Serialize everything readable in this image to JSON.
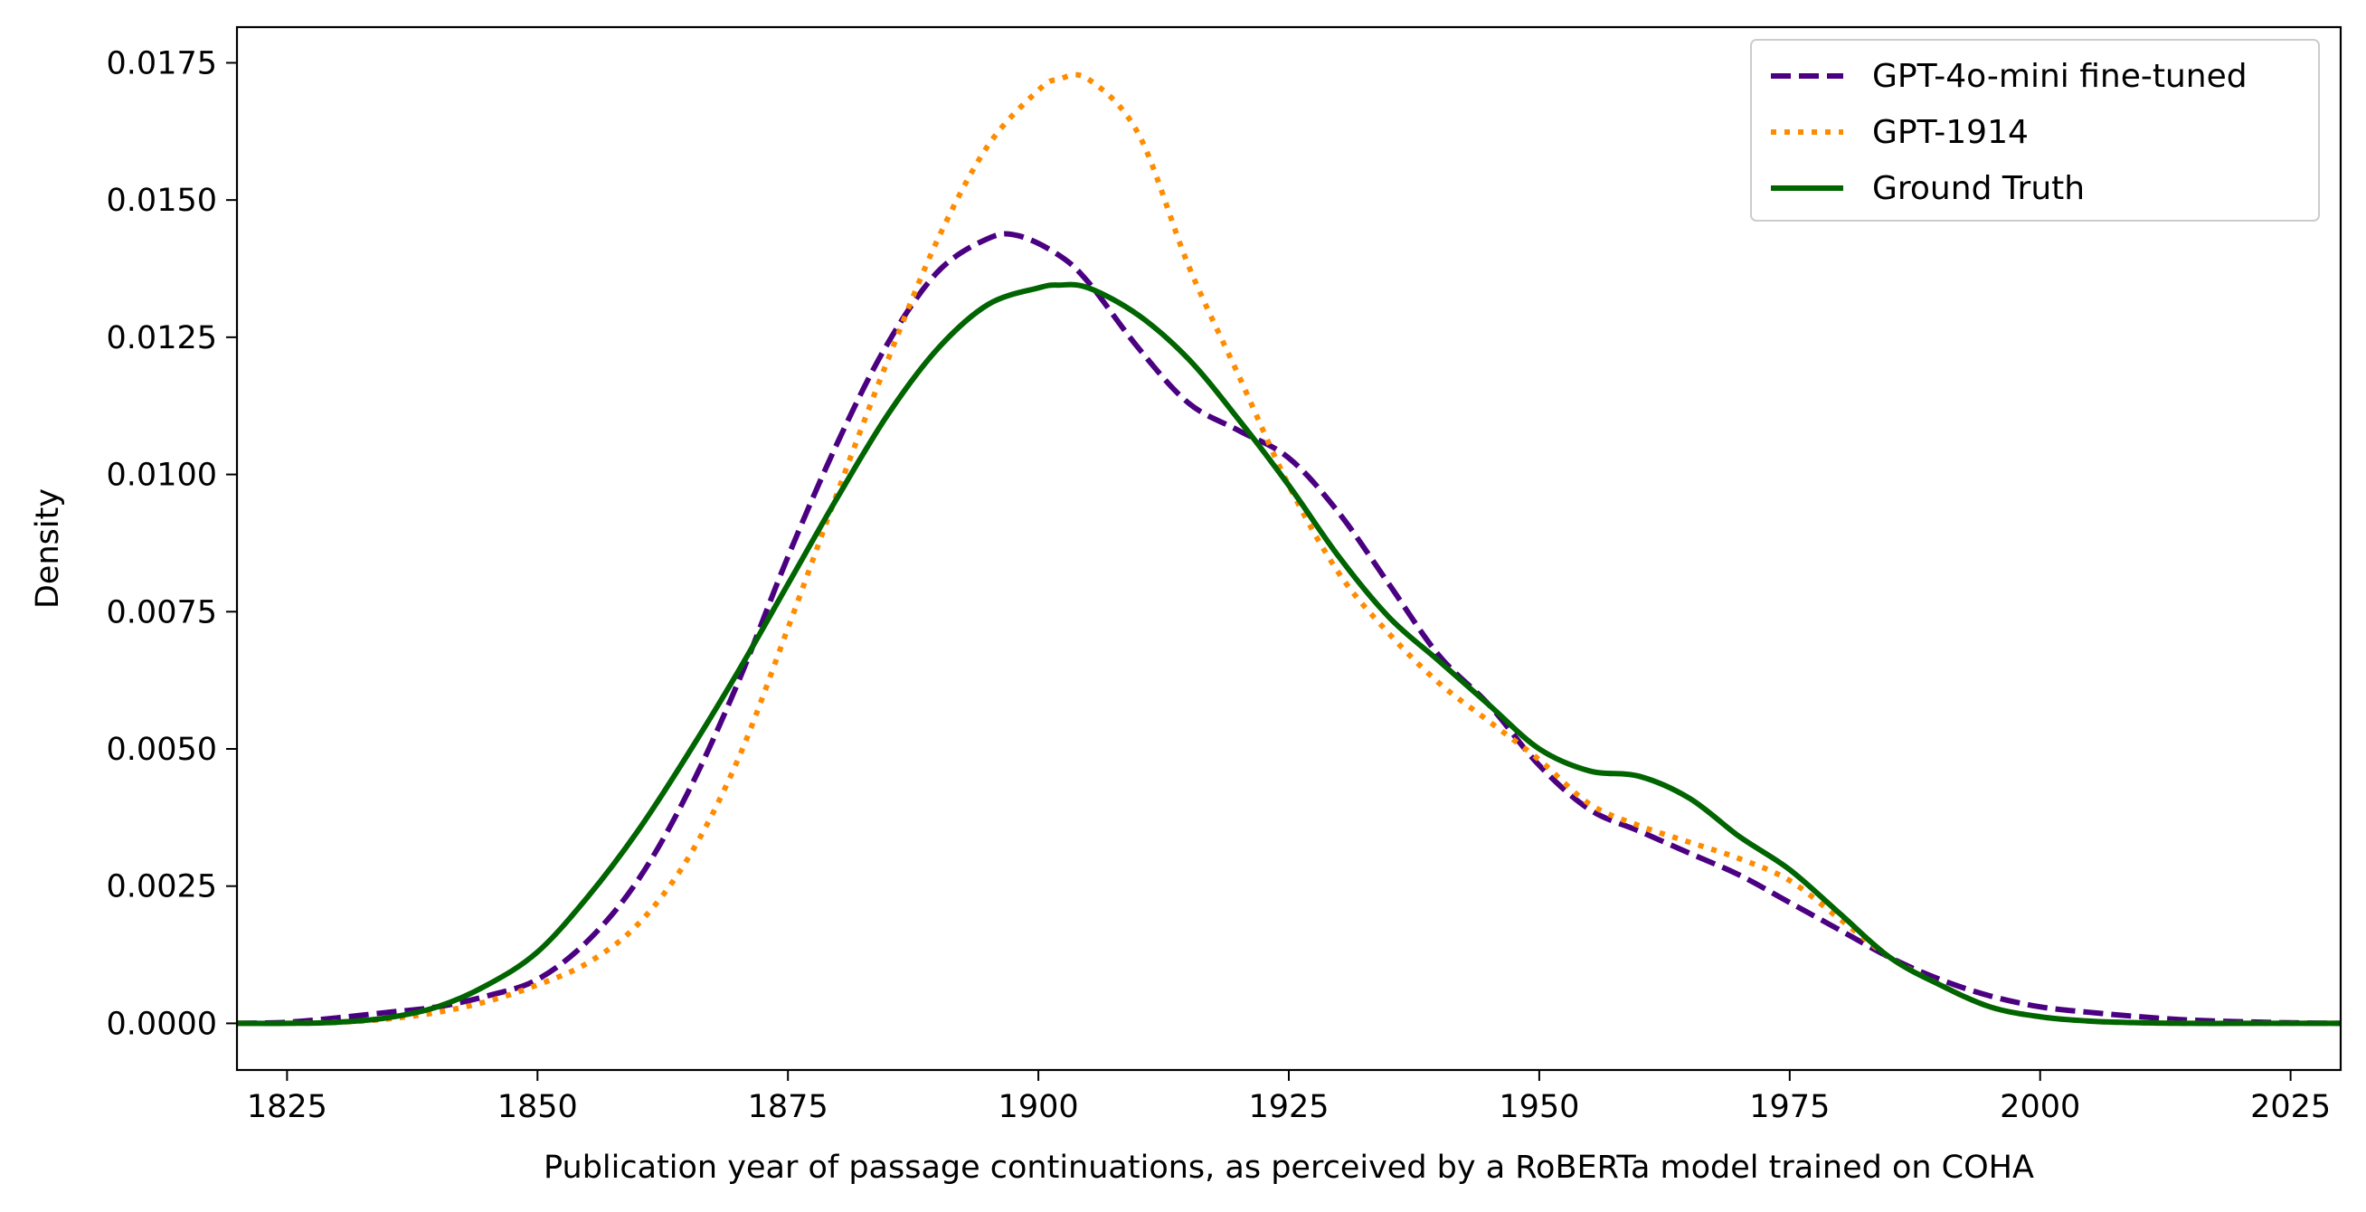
{
  "chart_data": {
    "type": "line",
    "title": "",
    "xlabel": "Publication year of passage continuations, as perceived by a RoBERTa model trained on COHA",
    "ylabel": "Density",
    "xlim": [
      1820,
      2030
    ],
    "ylim": [
      -0.00085,
      0.01815
    ],
    "xticks": [
      1825,
      1850,
      1875,
      1900,
      1925,
      1950,
      1975,
      2000,
      2025
    ],
    "xtick_labels": [
      "1825",
      "1850",
      "1875",
      "1900",
      "1925",
      "1950",
      "1975",
      "2000",
      "2025"
    ],
    "yticks": [
      0.0,
      0.0025,
      0.005,
      0.0075,
      0.01,
      0.0125,
      0.015,
      0.0175
    ],
    "ytick_labels": [
      "0.0000",
      "0.0025",
      "0.0050",
      "0.0075",
      "0.0100",
      "0.0125",
      "0.0150",
      "0.0175"
    ],
    "grid": false,
    "legend_position": "top-right",
    "series": [
      {
        "name": "GPT-4o-mini fine-tuned",
        "color": "#4b0082",
        "style": "dashed",
        "x": [
          1820,
          1825,
          1830,
          1835,
          1840,
          1845,
          1850,
          1855,
          1860,
          1865,
          1870,
          1875,
          1880,
          1885,
          1890,
          1895,
          1898,
          1902,
          1905,
          1910,
          1915,
          1920,
          1925,
          1930,
          1935,
          1940,
          1945,
          1950,
          1955,
          1960,
          1965,
          1970,
          1975,
          1980,
          1985,
          1990,
          1995,
          2000,
          2005,
          2010,
          2015,
          2020,
          2025,
          2030
        ],
        "y": [
          0.0,
          2e-05,
          0.0001,
          0.0002,
          0.0003,
          0.0005,
          0.0008,
          0.0015,
          0.0026,
          0.0042,
          0.0062,
          0.0085,
          0.0106,
          0.0124,
          0.0137,
          0.0143,
          0.01435,
          0.014,
          0.0135,
          0.0123,
          0.0113,
          0.0108,
          0.0103,
          0.0093,
          0.008,
          0.0067,
          0.0058,
          0.0047,
          0.0039,
          0.0035,
          0.0031,
          0.0027,
          0.0022,
          0.0017,
          0.0012,
          0.0008,
          0.0005,
          0.0003,
          0.0002,
          0.00012,
          6e-05,
          3e-05,
          1e-05,
          0.0
        ]
      },
      {
        "name": "GPT-1914",
        "color": "#ff8c00",
        "style": "dotted",
        "x": [
          1820,
          1825,
          1830,
          1835,
          1840,
          1845,
          1850,
          1855,
          1860,
          1865,
          1870,
          1875,
          1880,
          1885,
          1890,
          1895,
          1900,
          1902,
          1905,
          1910,
          1915,
          1920,
          1925,
          1930,
          1935,
          1940,
          1945,
          1950,
          1955,
          1960,
          1965,
          1970,
          1975,
          1980,
          1985,
          1990,
          1995,
          2000,
          2005,
          2010,
          2015,
          2020,
          2025,
          2030
        ],
        "y": [
          0.0,
          0.0,
          2e-05,
          8e-05,
          0.0002,
          0.0004,
          0.0007,
          0.0011,
          0.0018,
          0.003,
          0.0048,
          0.0072,
          0.0097,
          0.0121,
          0.0143,
          0.016,
          0.017,
          0.0172,
          0.0172,
          0.0162,
          0.0138,
          0.0118,
          0.0098,
          0.0082,
          0.0071,
          0.0062,
          0.0055,
          0.0048,
          0.004,
          0.0036,
          0.0033,
          0.003,
          0.0026,
          0.0019,
          0.0012,
          0.0007,
          0.0003,
          0.00012,
          4e-05,
          1e-05,
          0.0,
          0.0,
          0.0,
          0.0
        ]
      },
      {
        "name": "Ground Truth",
        "color": "#006400",
        "style": "solid",
        "x": [
          1820,
          1825,
          1830,
          1835,
          1840,
          1845,
          1850,
          1855,
          1860,
          1865,
          1870,
          1875,
          1880,
          1885,
          1890,
          1895,
          1900,
          1902,
          1905,
          1910,
          1915,
          1920,
          1925,
          1930,
          1935,
          1940,
          1945,
          1950,
          1955,
          1960,
          1965,
          1970,
          1975,
          1980,
          1985,
          1990,
          1995,
          2000,
          2005,
          2010,
          2015,
          2020,
          2025,
          2030
        ],
        "y": [
          0.0,
          0.0,
          2e-05,
          0.0001,
          0.0003,
          0.0007,
          0.0013,
          0.0023,
          0.0035,
          0.0049,
          0.0064,
          0.008,
          0.0096,
          0.0111,
          0.0123,
          0.0131,
          0.0134,
          0.01345,
          0.0134,
          0.0129,
          0.0121,
          0.011,
          0.0098,
          0.0085,
          0.0074,
          0.0066,
          0.0058,
          0.005,
          0.0046,
          0.0045,
          0.0041,
          0.0034,
          0.0028,
          0.002,
          0.0012,
          0.0007,
          0.0003,
          0.00012,
          4e-05,
          1e-05,
          0.0,
          0.0,
          0.0,
          0.0
        ]
      }
    ]
  }
}
